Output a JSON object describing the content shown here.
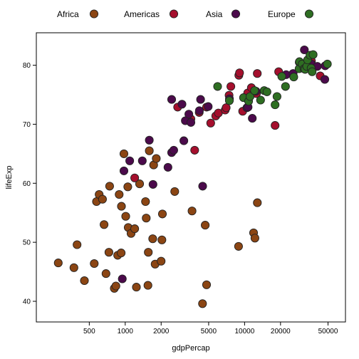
{
  "chart_data": {
    "type": "scatter",
    "xlabel": "gdpPercap",
    "ylabel": "lifeExp",
    "x_scale": "log",
    "xlim": [
      180,
      70000
    ],
    "ylim": [
      36.5,
      85.5
    ],
    "x_ticks": [
      500,
      1000,
      2000,
      5000,
      10000,
      20000,
      50000
    ],
    "x_tick_labels": [
      "500",
      "1000",
      "2000",
      "5000",
      "10000",
      "20000",
      "50000"
    ],
    "y_ticks": [
      40,
      50,
      60,
      70,
      80
    ],
    "y_tick_labels": [
      "40",
      "50",
      "60",
      "70",
      "80"
    ],
    "grid": false,
    "legend_position": "top",
    "series": [
      {
        "name": "Africa",
        "color": "#8B4513",
        "points": [
          [
            275,
            46.5
          ],
          [
            372,
            45.7
          ],
          [
            395,
            49.6
          ],
          [
            455,
            43.5
          ],
          [
            550,
            46.4
          ],
          [
            575,
            56.9
          ],
          [
            605,
            58.1
          ],
          [
            645,
            57.3
          ],
          [
            665,
            53.0
          ],
          [
            690,
            44.7
          ],
          [
            730,
            48.3
          ],
          [
            740,
            59.5
          ],
          [
            810,
            42.2
          ],
          [
            835,
            42.6
          ],
          [
            865,
            47.8
          ],
          [
            890,
            58.1
          ],
          [
            925,
            48.2
          ],
          [
            930,
            56.1
          ],
          [
            975,
            65.0
          ],
          [
            1010,
            54.4
          ],
          [
            1050,
            59.4
          ],
          [
            1060,
            52.5
          ],
          [
            1120,
            51.5
          ],
          [
            1200,
            52.3
          ],
          [
            1240,
            42.4
          ],
          [
            1320,
            59.9
          ],
          [
            1480,
            56.9
          ],
          [
            1500,
            54.1
          ],
          [
            1550,
            42.7
          ],
          [
            1560,
            48.3
          ],
          [
            1590,
            65.5
          ],
          [
            1700,
            50.6
          ],
          [
            1730,
            63.1
          ],
          [
            1780,
            46.3
          ],
          [
            1820,
            64.2
          ],
          [
            2000,
            46.8
          ],
          [
            2030,
            50.4
          ],
          [
            2050,
            54.8
          ],
          [
            2600,
            58.6
          ],
          [
            3630,
            55.3
          ],
          [
            4440,
            39.6
          ],
          [
            4680,
            52.9
          ],
          [
            4800,
            42.8
          ],
          [
            8900,
            49.3
          ],
          [
            11900,
            51.6
          ],
          [
            12200,
            50.7
          ],
          [
            12800,
            56.7
          ]
        ]
      },
      {
        "name": "Americas",
        "color": "#A50F2D",
        "points": [
          [
            1200,
            60.9
          ],
          [
            2750,
            72.9
          ],
          [
            3550,
            70.9
          ],
          [
            3820,
            65.6
          ],
          [
            4170,
            72.0
          ],
          [
            4800,
            72.9
          ],
          [
            5200,
            70.2
          ],
          [
            5730,
            71.4
          ],
          [
            6030,
            71.9
          ],
          [
            6870,
            72.4
          ],
          [
            7010,
            72.8
          ],
          [
            7410,
            74.9
          ],
          [
            7670,
            76.4
          ],
          [
            8950,
            78.3
          ],
          [
            9070,
            78.7
          ],
          [
            9640,
            72.2
          ],
          [
            10610,
            75.3
          ],
          [
            11400,
            76.2
          ],
          [
            12570,
            75.2
          ],
          [
            12780,
            78.6
          ],
          [
            18000,
            69.8
          ],
          [
            19300,
            78.9
          ],
          [
            36300,
            80.7
          ],
          [
            42950,
            78.2
          ]
        ]
      },
      {
        "name": "Asia",
        "color": "#4B0A4B",
        "points": [
          [
            945,
            43.8
          ],
          [
            975,
            62.1
          ],
          [
            1090,
            63.8
          ],
          [
            1390,
            63.8
          ],
          [
            1590,
            67.3
          ],
          [
            1710,
            59.8
          ],
          [
            2280,
            62.7
          ],
          [
            2450,
            74.2
          ],
          [
            2450,
            65.2
          ],
          [
            2550,
            65.6
          ],
          [
            2990,
            73.4
          ],
          [
            3190,
            70.6
          ],
          [
            3100,
            67.2
          ],
          [
            3410,
            71.7
          ],
          [
            3550,
            70.3
          ],
          [
            4180,
            72.3
          ],
          [
            4280,
            74.2
          ],
          [
            4450,
            59.5
          ],
          [
            4960,
            73.0
          ],
          [
            7460,
            74.3
          ],
          [
            10460,
            72.8
          ],
          [
            10700,
            72.9
          ],
          [
            11600,
            71.0
          ],
          [
            12450,
            75.6
          ],
          [
            22300,
            78.4
          ],
          [
            25500,
            78.6
          ],
          [
            28700,
            80.5
          ],
          [
            31700,
            82.6
          ],
          [
            36300,
            80.2
          ],
          [
            40700,
            79.8
          ],
          [
            47000,
            77.6
          ],
          [
            47300,
            79.9
          ]
        ]
      },
      {
        "name": "Europe",
        "color": "#2E6E22",
        "points": [
          [
            5940,
            76.4
          ],
          [
            7450,
            74.0
          ],
          [
            9800,
            74.5
          ],
          [
            10800,
            73.9
          ],
          [
            11100,
            74.7
          ],
          [
            12100,
            75.7
          ],
          [
            13600,
            74.1
          ],
          [
            14600,
            75.7
          ],
          [
            15400,
            75.5
          ],
          [
            18000,
            73.3
          ],
          [
            18700,
            74.7
          ],
          [
            20500,
            78.1
          ],
          [
            22000,
            76.4
          ],
          [
            25800,
            78.0
          ],
          [
            28600,
            79.4
          ],
          [
            28800,
            80.6
          ],
          [
            30400,
            80.2
          ],
          [
            31500,
            79.4
          ],
          [
            32100,
            79.3
          ],
          [
            33200,
            79.8
          ],
          [
            33700,
            80.9
          ],
          [
            35300,
            81.7
          ],
          [
            36100,
            79.5
          ],
          [
            36800,
            78.9
          ],
          [
            37500,
            81.8
          ],
          [
            49400,
            80.2
          ]
        ]
      }
    ]
  }
}
